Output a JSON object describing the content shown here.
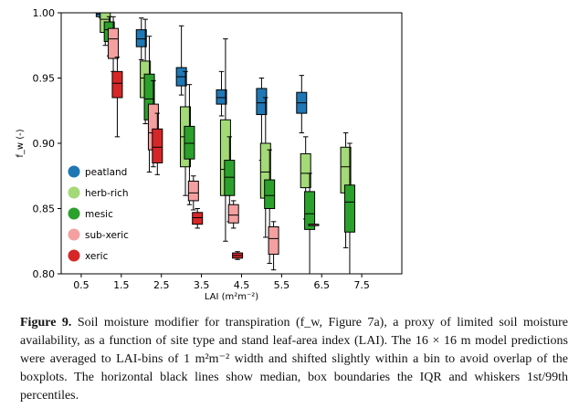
{
  "chart_data": {
    "type": "box",
    "xlabel": "LAI (m²m⁻²)",
    "ylabel": "f_w (-)",
    "ylim": [
      0.8,
      1.0
    ],
    "xlim": [
      0,
      8.5
    ],
    "xticks": [
      "0.5",
      "1.5",
      "2.5",
      "3.5",
      "4.5",
      "5.5",
      "6.5",
      "7.5"
    ],
    "yticks": [
      "0.80",
      "0.85",
      "0.90",
      "0.95",
      "1.00"
    ],
    "legend": {
      "position": "left",
      "items": [
        "peatland",
        "herb-rich",
        "mesic",
        "sub-xeric",
        "xeric"
      ]
    },
    "series": [
      {
        "name": "peatland",
        "color": "#1f77b4",
        "boxes": [
          {
            "x": 1.0,
            "whislo": 0.996,
            "q1": 0.997,
            "med": 0.999,
            "q3": 1.0,
            "whishi": 1.0
          },
          {
            "x": 2.0,
            "whislo": 0.964,
            "q1": 0.974,
            "med": 0.98,
            "q3": 0.987,
            "whishi": 0.996
          },
          {
            "x": 3.0,
            "whislo": 0.937,
            "q1": 0.944,
            "med": 0.951,
            "q3": 0.958,
            "whishi": 0.99
          },
          {
            "x": 4.0,
            "whislo": 0.921,
            "q1": 0.93,
            "med": 0.935,
            "q3": 0.941,
            "whishi": 0.955
          },
          {
            "x": 5.0,
            "whislo": 0.887,
            "q1": 0.922,
            "med": 0.931,
            "q3": 0.942,
            "whishi": 0.95
          },
          {
            "x": 6.0,
            "whislo": 0.908,
            "q1": 0.923,
            "med": 0.931,
            "q3": 0.939,
            "whishi": 0.952
          }
        ]
      },
      {
        "name": "herb-rich",
        "color": "#a3d977",
        "boxes": [
          {
            "x": 1.1,
            "whislo": 0.975,
            "q1": 0.985,
            "med": 0.995,
            "q3": 1.0,
            "whishi": 1.0
          },
          {
            "x": 2.1,
            "whislo": 0.915,
            "q1": 0.935,
            "med": 0.95,
            "q3": 0.963,
            "whishi": 0.995
          },
          {
            "x": 3.1,
            "whislo": 0.86,
            "q1": 0.882,
            "med": 0.905,
            "q3": 0.928,
            "whishi": 0.955
          },
          {
            "x": 4.1,
            "whislo": 0.825,
            "q1": 0.86,
            "med": 0.88,
            "q3": 0.918,
            "whishi": 0.98
          },
          {
            "x": 5.1,
            "whislo": 0.828,
            "q1": 0.858,
            "med": 0.878,
            "q3": 0.9,
            "whishi": 0.935
          },
          {
            "x": 6.1,
            "whislo": 0.842,
            "q1": 0.866,
            "med": 0.877,
            "q3": 0.892,
            "whishi": 0.905
          },
          {
            "x": 7.1,
            "whislo": 0.82,
            "q1": 0.862,
            "med": 0.882,
            "q3": 0.897,
            "whishi": 0.908
          }
        ]
      },
      {
        "name": "mesic",
        "color": "#2ca02c",
        "boxes": [
          {
            "x": 1.2,
            "whislo": 0.967,
            "q1": 0.978,
            "med": 0.987,
            "q3": 0.993,
            "whishi": 0.997
          },
          {
            "x": 2.2,
            "whislo": 0.878,
            "q1": 0.918,
            "med": 0.934,
            "q3": 0.953,
            "whishi": 0.982
          },
          {
            "x": 3.2,
            "whislo": 0.853,
            "q1": 0.888,
            "med": 0.9,
            "q3": 0.913,
            "whishi": 0.945
          },
          {
            "x": 4.2,
            "whislo": 0.84,
            "q1": 0.86,
            "med": 0.874,
            "q3": 0.887,
            "whishi": 0.905
          },
          {
            "x": 5.2,
            "whislo": 0.808,
            "q1": 0.85,
            "med": 0.86,
            "q3": 0.872,
            "whishi": 0.895
          },
          {
            "x": 6.2,
            "whislo": 0.792,
            "q1": 0.834,
            "med": 0.846,
            "q3": 0.863,
            "whishi": 0.877
          },
          {
            "x": 7.2,
            "whislo": 0.785,
            "q1": 0.832,
            "med": 0.855,
            "q3": 0.868,
            "whishi": 0.9
          }
        ]
      },
      {
        "name": "sub-xeric",
        "color": "#f4a0a0",
        "boxes": [
          {
            "x": 1.3,
            "whislo": 0.955,
            "q1": 0.965,
            "med": 0.98,
            "q3": 0.988,
            "whishi": 0.997
          },
          {
            "x": 2.3,
            "whislo": 0.882,
            "q1": 0.895,
            "med": 0.908,
            "q3": 0.93,
            "whishi": 0.948
          },
          {
            "x": 3.3,
            "whislo": 0.849,
            "q1": 0.856,
            "med": 0.862,
            "q3": 0.871,
            "whishi": 0.875
          },
          {
            "x": 4.3,
            "whislo": 0.835,
            "q1": 0.839,
            "med": 0.845,
            "q3": 0.853,
            "whishi": 0.856
          },
          {
            "x": 5.3,
            "whislo": 0.803,
            "q1": 0.815,
            "med": 0.827,
            "q3": 0.836,
            "whishi": 0.84
          },
          {
            "x": 6.3,
            "whislo": 0.837,
            "q1": 0.837,
            "med": 0.837,
            "q3": 0.838,
            "whishi": 0.838
          }
        ]
      },
      {
        "name": "xeric",
        "color": "#d62728",
        "boxes": [
          {
            "x": 1.4,
            "whislo": 0.905,
            "q1": 0.935,
            "med": 0.946,
            "q3": 0.955,
            "whishi": 0.966
          },
          {
            "x": 2.4,
            "whislo": 0.876,
            "q1": 0.885,
            "med": 0.897,
            "q3": 0.911,
            "whishi": 0.923
          },
          {
            "x": 3.4,
            "whislo": 0.835,
            "q1": 0.838,
            "med": 0.843,
            "q3": 0.847,
            "whishi": 0.85
          },
          {
            "x": 4.4,
            "whislo": 0.811,
            "q1": 0.812,
            "med": 0.814,
            "q3": 0.816,
            "whishi": 0.817
          }
        ]
      }
    ]
  },
  "caption": {
    "label": "Figure 9.",
    "text": "Soil moisture modifier for transpiration (f_w, Figure 7a), a proxy of limited soil moisture availability, as a function of site type and stand leaf-area index (LAI). The 16 × 16 m model predictions were averaged to LAI-bins of 1 m²m⁻² width and shifted slightly within a bin to avoid overlap of the boxplots. The horizontal black lines show median, box boundaries the IQR and whiskers 1st/99th percentiles."
  }
}
